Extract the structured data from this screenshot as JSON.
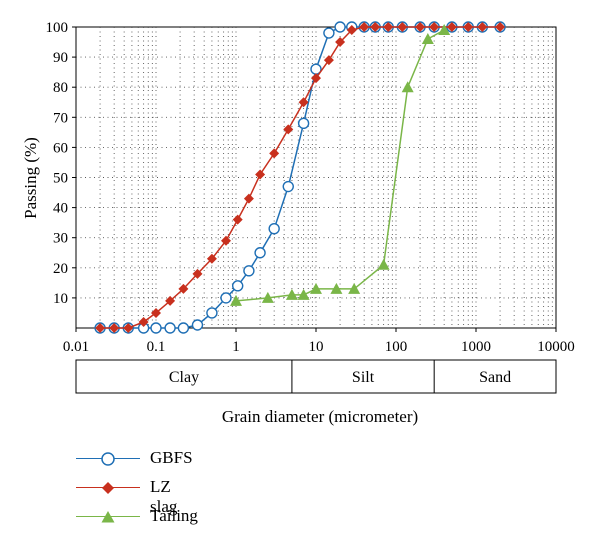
{
  "chart_data": {
    "type": "line",
    "xscale": "log",
    "xlim": [
      0.01,
      10000
    ],
    "ylim": [
      0,
      100
    ],
    "xticks": [
      "0.01",
      "0.1",
      "1",
      "10",
      "100",
      "1000",
      "10000"
    ],
    "yticks": [
      "10",
      "20",
      "30",
      "40",
      "50",
      "60",
      "70",
      "80",
      "90",
      "100"
    ],
    "ylabel": "Passing (%)",
    "xlabel": "Grain diameter (micrometer)",
    "grid": "dotted",
    "classification": [
      {
        "label": "Clay",
        "from": 0.01,
        "to": 5
      },
      {
        "label": "Silt",
        "from": 5,
        "to": 300
      },
      {
        "label": "Sand",
        "from": 300,
        "to": 10000
      }
    ],
    "legend_position": "bottom-left",
    "series": [
      {
        "name": "GBFS",
        "color": "#1f6fb5",
        "marker": "circle-open",
        "x": [
          0.02,
          0.03,
          0.045,
          0.07,
          0.1,
          0.15,
          0.22,
          0.33,
          0.5,
          0.75,
          1.05,
          1.45,
          2.0,
          3.0,
          4.5,
          7.0,
          10.0,
          14.5,
          20.0,
          28.0,
          40.0,
          55.0,
          80.0,
          120.0,
          200.0,
          300.0,
          500.0,
          800.0,
          1200.0,
          2000.0
        ],
        "y": [
          0,
          0,
          0,
          0,
          0,
          0,
          0,
          1,
          5,
          10,
          14,
          19,
          25,
          33,
          47,
          68,
          86,
          98,
          100,
          100,
          100,
          100,
          100,
          100,
          100,
          100,
          100,
          100,
          100,
          100
        ]
      },
      {
        "name": "LZ slag",
        "color": "#c8301e",
        "marker": "diamond",
        "x": [
          0.02,
          0.03,
          0.045,
          0.07,
          0.1,
          0.15,
          0.22,
          0.33,
          0.5,
          0.75,
          1.05,
          1.45,
          2.0,
          3.0,
          4.5,
          7.0,
          10.0,
          14.5,
          20.0,
          28.0,
          40.0,
          55.0,
          80.0,
          120.0,
          200.0,
          300.0,
          500.0,
          800.0,
          1200.0,
          2000.0
        ],
        "y": [
          0,
          0,
          0,
          2,
          5,
          9,
          13,
          18,
          23,
          29,
          36,
          43,
          51,
          58,
          66,
          75,
          83,
          89,
          95,
          99,
          100,
          100,
          100,
          100,
          100,
          100,
          100,
          100,
          100,
          100
        ]
      },
      {
        "name": "Tailing",
        "color": "#7ab648",
        "marker": "triangle",
        "x": [
          1.0,
          2.5,
          5.0,
          7.0,
          10.0,
          18.0,
          30.0,
          70.0,
          140.0,
          250.0,
          400.0
        ],
        "y": [
          9,
          10,
          11,
          11,
          13,
          13,
          13,
          21,
          80,
          96,
          99
        ]
      }
    ]
  }
}
